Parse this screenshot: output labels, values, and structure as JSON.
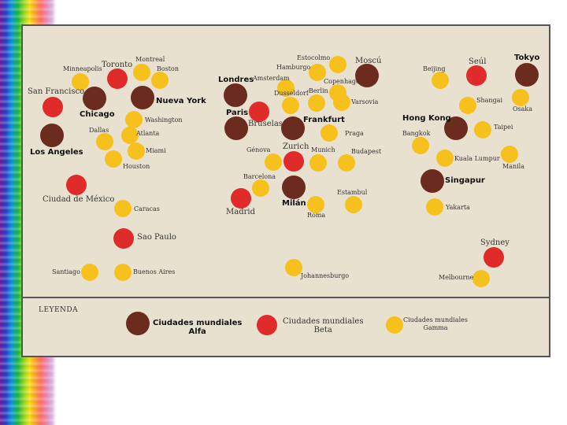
{
  "legend": {
    "title": "LEYENDA",
    "alpha": {
      "line1": "Ciudades mundiales",
      "line2": "Alfa",
      "color": "#6b2b1e"
    },
    "beta": {
      "line1": "Ciudades mundiales",
      "line2": "Beta",
      "color": "#e02b2b"
    },
    "gamma": {
      "line1": "Ciudades mundiales",
      "line2": "Gamma",
      "color": "#f7c11d"
    }
  },
  "cities": {
    "minneapolis": "Minneapolis",
    "toronto": "Toronto",
    "montreal": "Montreal",
    "boston": "Boston",
    "san_francisco": "San Francisco",
    "chicago": "Chicago",
    "nueva_york": "Nueva York",
    "washington": "Washington",
    "dallas": "Dallas",
    "atlanta": "Atlanta",
    "los_angeles": "Los Angeles",
    "miami": "Miami",
    "houston": "Houston",
    "ciudad_de_mexico": "Ciudad de México",
    "caracas": "Caracas",
    "sao_paulo": "Sao Paulo",
    "santiago": "Santiago",
    "buenos_aires": "Buenos Aires",
    "estocolmo": "Estocolmo",
    "moscu": "Moscú",
    "hamburgo": "Hamburgo",
    "londres": "Londres",
    "amsterdam": "Amsterdam",
    "copenhage": "Copenhage",
    "berlin": "Berlin",
    "dusseldorf": "Dusseldorf",
    "varsovia": "Varsovia",
    "paris": "Paris",
    "bruselas": "Bruselas",
    "frankfurt": "Frankfurt",
    "praga": "Praga",
    "zurich": "Zurich",
    "genova": "Génova",
    "munich": "Munich",
    "budapest": "Budapest",
    "barcelona": "Barcelona",
    "estambul": "Estambul",
    "madrid": "Madrid",
    "milan": "Milán",
    "roma": "Roma",
    "johannesburgo": "Johannesburgo",
    "beijing": "Beijing",
    "seul": "Seúl",
    "tokyo": "Tokyo",
    "shangai": "Shangai",
    "osaka": "Osaka",
    "hong_kong": "Hong Kong",
    "taipei": "Taipei",
    "bangkok": "Bangkok",
    "kuala_lumpur": "Kuala Lumpur",
    "manila": "Manila",
    "singapur": "Singapur",
    "yakarta": "Yakarta",
    "sydney": "Sydney",
    "melbourne": "Melbourne"
  }
}
